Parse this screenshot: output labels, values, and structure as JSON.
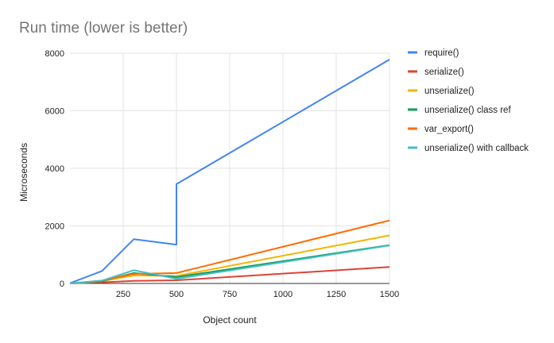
{
  "chart_data": {
    "type": "line",
    "title": "Run time (lower is better)",
    "xlabel": "Object count",
    "ylabel": "Microseconds",
    "xlim": [
      0,
      1500
    ],
    "ylim": [
      0,
      8000
    ],
    "xticks": [
      250,
      500,
      750,
      1000,
      1250,
      1500
    ],
    "xtick_labels": [
      "250",
      "500",
      "750",
      "1000",
      "1250",
      "1500"
    ],
    "yticks": [
      0,
      2000,
      4000,
      6000,
      8000
    ],
    "ytick_labels": [
      "0",
      "2000",
      "4000",
      "6000",
      "8000"
    ],
    "grid": "horizontal and vertical",
    "legend_position": "right",
    "series": [
      {
        "name": "require()",
        "color": "#4285f4",
        "points": [
          [
            1,
            10
          ],
          [
            150,
            430
          ],
          [
            300,
            1540
          ],
          [
            500,
            1350
          ],
          [
            500,
            3450
          ],
          [
            1500,
            7780
          ]
        ]
      },
      {
        "name": "serialize()",
        "color": "#db4437",
        "points": [
          [
            1,
            0
          ],
          [
            150,
            40
          ],
          [
            300,
            90
          ],
          [
            500,
            110
          ],
          [
            1500,
            570
          ]
        ]
      },
      {
        "name": "unserialize()",
        "color": "#f4b400",
        "points": [
          [
            1,
            0
          ],
          [
            150,
            80
          ],
          [
            300,
            280
          ],
          [
            500,
            260
          ],
          [
            1500,
            1670
          ]
        ]
      },
      {
        "name": "unserialize() class ref",
        "color": "#0f9d58",
        "points": [
          [
            1,
            0
          ],
          [
            150,
            80
          ],
          [
            300,
            360
          ],
          [
            500,
            220
          ],
          [
            1500,
            1330
          ]
        ]
      },
      {
        "name": "var_export()",
        "color": "#ff6d01",
        "points": [
          [
            1,
            0
          ],
          [
            150,
            100
          ],
          [
            300,
            330
          ],
          [
            500,
            360
          ],
          [
            1500,
            2190
          ]
        ]
      },
      {
        "name": "unserialize() with callback",
        "color": "#46bdc6",
        "points": [
          [
            1,
            0
          ],
          [
            150,
            100
          ],
          [
            300,
            460
          ],
          [
            500,
            160
          ],
          [
            1500,
            1320
          ]
        ]
      }
    ]
  }
}
